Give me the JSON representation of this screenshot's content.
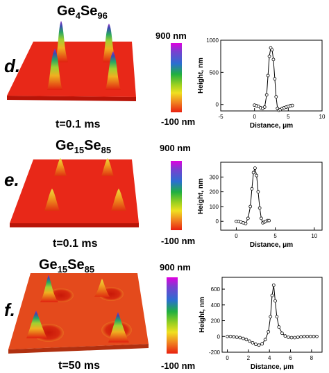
{
  "panels": [
    {
      "letter": "d.",
      "comp_main": "Ge",
      "comp_sub1": "4",
      "comp_mid": "Se",
      "comp_sub2": "96",
      "time": "t=0.1 ms",
      "scale_max": "900 nm",
      "scale_min": "-100 nm"
    },
    {
      "letter": "e.",
      "comp_main": "Ge",
      "comp_sub1": "15",
      "comp_mid": "Se",
      "comp_sub2": "85",
      "time": "t=0.1 ms",
      "scale_max": "900 nm",
      "scale_min": "-100 nm"
    },
    {
      "letter": "f.",
      "comp_main": "Ge",
      "comp_sub1": "15",
      "comp_mid": "Se",
      "comp_sub2": "85",
      "time": "t=50 ms",
      "scale_max": "900 nm",
      "scale_min": "-100 nm"
    }
  ],
  "chart_data": [
    {
      "type": "line",
      "xlabel": "Distance, μm",
      "ylabel": "Height, nm",
      "xlim": [
        -5,
        10
      ],
      "ylim": [
        -100,
        1000
      ],
      "xticks": [
        "-5",
        "0",
        "5",
        "10"
      ],
      "yticks": [
        "0",
        "500",
        "1000"
      ],
      "series": [
        {
          "x": [
            0,
            0.3,
            0.6,
            0.9,
            1.2,
            1.5,
            1.8,
            2.0,
            2.2,
            2.4,
            2.6,
            2.8,
            3.0,
            3.2,
            3.4,
            3.6,
            3.8,
            4.1,
            4.4,
            4.7,
            5.0,
            5.3,
            5.6
          ],
          "y": [
            -10,
            -20,
            -30,
            -50,
            -60,
            -40,
            150,
            450,
            750,
            880,
            850,
            700,
            400,
            120,
            -60,
            -90,
            -80,
            -60,
            -50,
            -40,
            -30,
            -20,
            -15
          ]
        }
      ]
    },
    {
      "type": "line",
      "xlabel": "Distance, μm",
      "ylabel": "Height, nm",
      "xlim": [
        -2,
        11
      ],
      "ylim": [
        -60,
        400
      ],
      "xticks": [
        "0",
        "5",
        "10"
      ],
      "yticks": [
        "0",
        "100",
        "200",
        "300"
      ],
      "series": [
        {
          "x": [
            0,
            0.3,
            0.6,
            0.9,
            1.2,
            1.5,
            1.8,
            2.0,
            2.2,
            2.4,
            2.6,
            2.8,
            3.0,
            3.2,
            3.4,
            3.6,
            3.8,
            4.0,
            4.2
          ],
          "y": [
            0,
            0,
            -5,
            -10,
            -15,
            20,
            100,
            220,
            330,
            360,
            310,
            200,
            90,
            20,
            -10,
            -5,
            0,
            5,
            5
          ]
        }
      ]
    },
    {
      "type": "line",
      "xlabel": "Distance, μm",
      "ylabel": "Height, nm",
      "xlim": [
        -0.5,
        9
      ],
      "ylim": [
        -200,
        750
      ],
      "xticks": [
        "0",
        "2",
        "4",
        "6",
        "8"
      ],
      "yticks": [
        "-200",
        "0",
        "200",
        "400",
        "600"
      ],
      "series": [
        {
          "x": [
            0,
            0.3,
            0.6,
            0.9,
            1.2,
            1.5,
            1.8,
            2.1,
            2.4,
            2.7,
            3.0,
            3.3,
            3.6,
            3.9,
            4.1,
            4.25,
            4.4,
            4.55,
            4.7,
            4.9,
            5.2,
            5.5,
            5.8,
            6.1,
            6.4,
            6.7,
            7.0,
            7.3,
            7.6,
            7.9,
            8.2,
            8.5
          ],
          "y": [
            0,
            0,
            -5,
            -10,
            -15,
            -25,
            -40,
            -60,
            -80,
            -100,
            -110,
            -95,
            -40,
            60,
            250,
            520,
            650,
            450,
            250,
            120,
            40,
            5,
            -10,
            -15,
            -15,
            -10,
            -5,
            0,
            0,
            0,
            0,
            0
          ]
        }
      ]
    }
  ]
}
